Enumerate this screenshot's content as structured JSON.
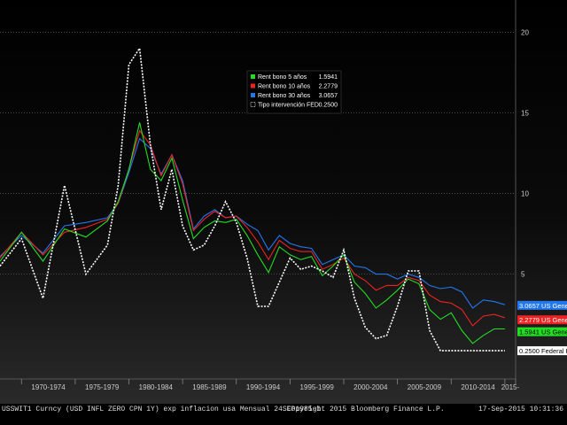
{
  "chart_data": {
    "type": "line",
    "title": "",
    "xlabel": "",
    "ylabel": "",
    "ylim": [
      -1.5,
      22
    ],
    "yticks": [
      20,
      15,
      10,
      5
    ],
    "x_tick_labels": [
      "1970-1974",
      "1975-1979",
      "1980-1984",
      "1985-1989",
      "1990-1994",
      "1995-1999",
      "2000-2004",
      "2005-2009",
      "2010-2014",
      "2015-"
    ],
    "grid": true,
    "legend_position": "top-center",
    "x": [
      1968,
      1970,
      1972,
      1974,
      1976,
      1978,
      1979,
      1980,
      1981,
      1982,
      1983,
      1984,
      1985,
      1986,
      1987,
      1988,
      1989,
      1990,
      1991,
      1992,
      1993,
      1994,
      1995,
      1996,
      1997,
      1998,
      1999,
      2000,
      2001,
      2002,
      2003,
      2004,
      2005,
      2006,
      2007,
      2008,
      2009,
      2010,
      2011,
      2012,
      2013,
      2014,
      2015
    ],
    "series": [
      {
        "name": "Rent bono 5 años",
        "last_value": "1.5941",
        "color": "#22dd22",
        "values": [
          5.8,
          7.6,
          5.8,
          7.8,
          7.3,
          8.3,
          9.5,
          11.5,
          14.4,
          11.5,
          10.8,
          12.2,
          9.6,
          7.2,
          7.9,
          8.3,
          8.2,
          8.4,
          7.4,
          6.2,
          5.1,
          6.7,
          6.2,
          5.9,
          6.1,
          4.9,
          5.5,
          6.2,
          4.5,
          3.8,
          2.9,
          3.4,
          4.0,
          4.7,
          4.4,
          2.8,
          2.2,
          2.6,
          1.5,
          0.7,
          1.2,
          1.6,
          1.6
        ]
      },
      {
        "name": "Rent bono 10 años",
        "last_value": "2.2779",
        "color": "#ee2222",
        "values": [
          6.0,
          7.6,
          6.2,
          7.6,
          7.9,
          8.4,
          9.4,
          11.5,
          13.9,
          13.0,
          11.1,
          12.4,
          10.6,
          7.7,
          8.4,
          8.9,
          8.5,
          8.6,
          7.9,
          7.0,
          5.9,
          7.1,
          6.6,
          6.4,
          6.4,
          5.3,
          5.6,
          6.0,
          5.0,
          4.6,
          4.0,
          4.3,
          4.3,
          4.8,
          4.6,
          3.7,
          3.3,
          3.2,
          2.8,
          1.8,
          2.4,
          2.5,
          2.3
        ]
      },
      {
        "name": "Rent bono 30 años",
        "last_value": "3.0657",
        "color": "#2277ee",
        "values": [
          6.1,
          7.4,
          6.3,
          8.0,
          8.2,
          8.5,
          9.4,
          11.3,
          13.4,
          12.8,
          11.2,
          12.4,
          10.8,
          7.8,
          8.6,
          9.0,
          8.5,
          8.6,
          8.1,
          7.7,
          6.5,
          7.4,
          6.9,
          6.7,
          6.6,
          5.6,
          5.9,
          6.2,
          5.5,
          5.4,
          5.0,
          5.0,
          4.7,
          5.0,
          4.8,
          4.3,
          4.1,
          4.2,
          3.9,
          2.9,
          3.4,
          3.3,
          3.1
        ]
      },
      {
        "name": "Tipo intervención FED",
        "last_value": "0.2500",
        "color": "#ffffff",
        "dash": true,
        "values": [
          5.5,
          7.2,
          3.5,
          10.5,
          5.0,
          6.8,
          10.5,
          18.0,
          19.0,
          13.0,
          9.0,
          11.5,
          8.0,
          6.5,
          6.8,
          8.0,
          9.5,
          8.2,
          6.0,
          3.0,
          3.0,
          4.5,
          6.0,
          5.3,
          5.5,
          5.2,
          4.8,
          6.5,
          3.5,
          1.7,
          1.0,
          1.2,
          3.0,
          5.2,
          5.2,
          1.5,
          0.25,
          0.25,
          0.25,
          0.25,
          0.25,
          0.25,
          0.25
        ]
      }
    ],
    "right_labels": [
      {
        "text": "3.0657 US Generi",
        "value": 3.0657,
        "bg": "#2277ee",
        "fg": "#ffffff"
      },
      {
        "text": "2.2779 US Generi",
        "value": 2.2779,
        "bg": "#ee2222",
        "fg": "#ffffff"
      },
      {
        "text": "1.5941 US Generi",
        "value": 1.5941,
        "bg": "#22dd22",
        "fg": "#000000"
      },
      {
        "text": "0.2500 Federal F",
        "value": 0.25,
        "bg": "#ffffff",
        "fg": "#000000"
      }
    ]
  },
  "footer": {
    "left": "USSWIT1 Curncy (USD INFL ZERO CPN   1Y) exp inflacion usa  Mensual 24SEP1985-1",
    "mid": "Copyright 2015 Bloomberg Finance L.P.",
    "right": "17-Sep-2015 10:31:36"
  }
}
